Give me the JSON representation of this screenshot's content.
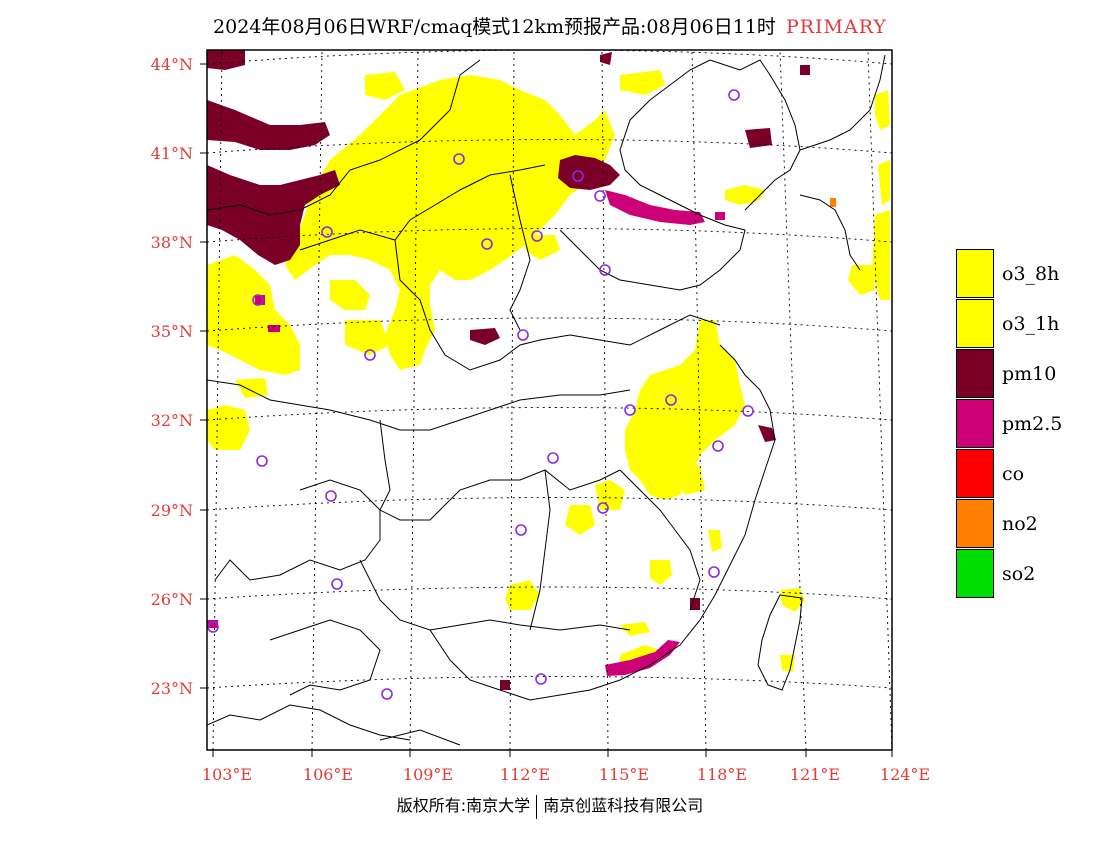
{
  "title": {
    "main": "2024年08月06日WRF/cmaq模式12km预报产品:08月06日11时",
    "tag": "PRIMARY"
  },
  "axes": {
    "lat_labels": [
      "44°N",
      "41°N",
      "38°N",
      "35°N",
      "32°N",
      "29°N",
      "26°N",
      "23°N"
    ],
    "lon_labels": [
      "103°E",
      "106°E",
      "109°E",
      "112°E",
      "115°E",
      "118°E",
      "121°E",
      "124°E"
    ]
  },
  "legend": [
    {
      "label": "o3_8h",
      "color": "#ffff00"
    },
    {
      "label": "o3_1h",
      "color": "#ffff00"
    },
    {
      "label": "pm10",
      "color": "#7a0028"
    },
    {
      "label": "pm2.5",
      "color": "#cc0077"
    },
    {
      "label": "co",
      "color": "#ff0000"
    },
    {
      "label": "no2",
      "color": "#ff7f00"
    },
    {
      "label": "so2",
      "color": "#00dd00"
    }
  ],
  "footer": {
    "left": "版权所有:南京大学",
    "right": "南京创蓝科技有限公司"
  },
  "colors": {
    "accent_red": "#e33a3a",
    "o3": "#ffff00",
    "pm10": "#7a0028",
    "pm25": "#cc0077",
    "station_marker": "#8a2be2"
  }
}
